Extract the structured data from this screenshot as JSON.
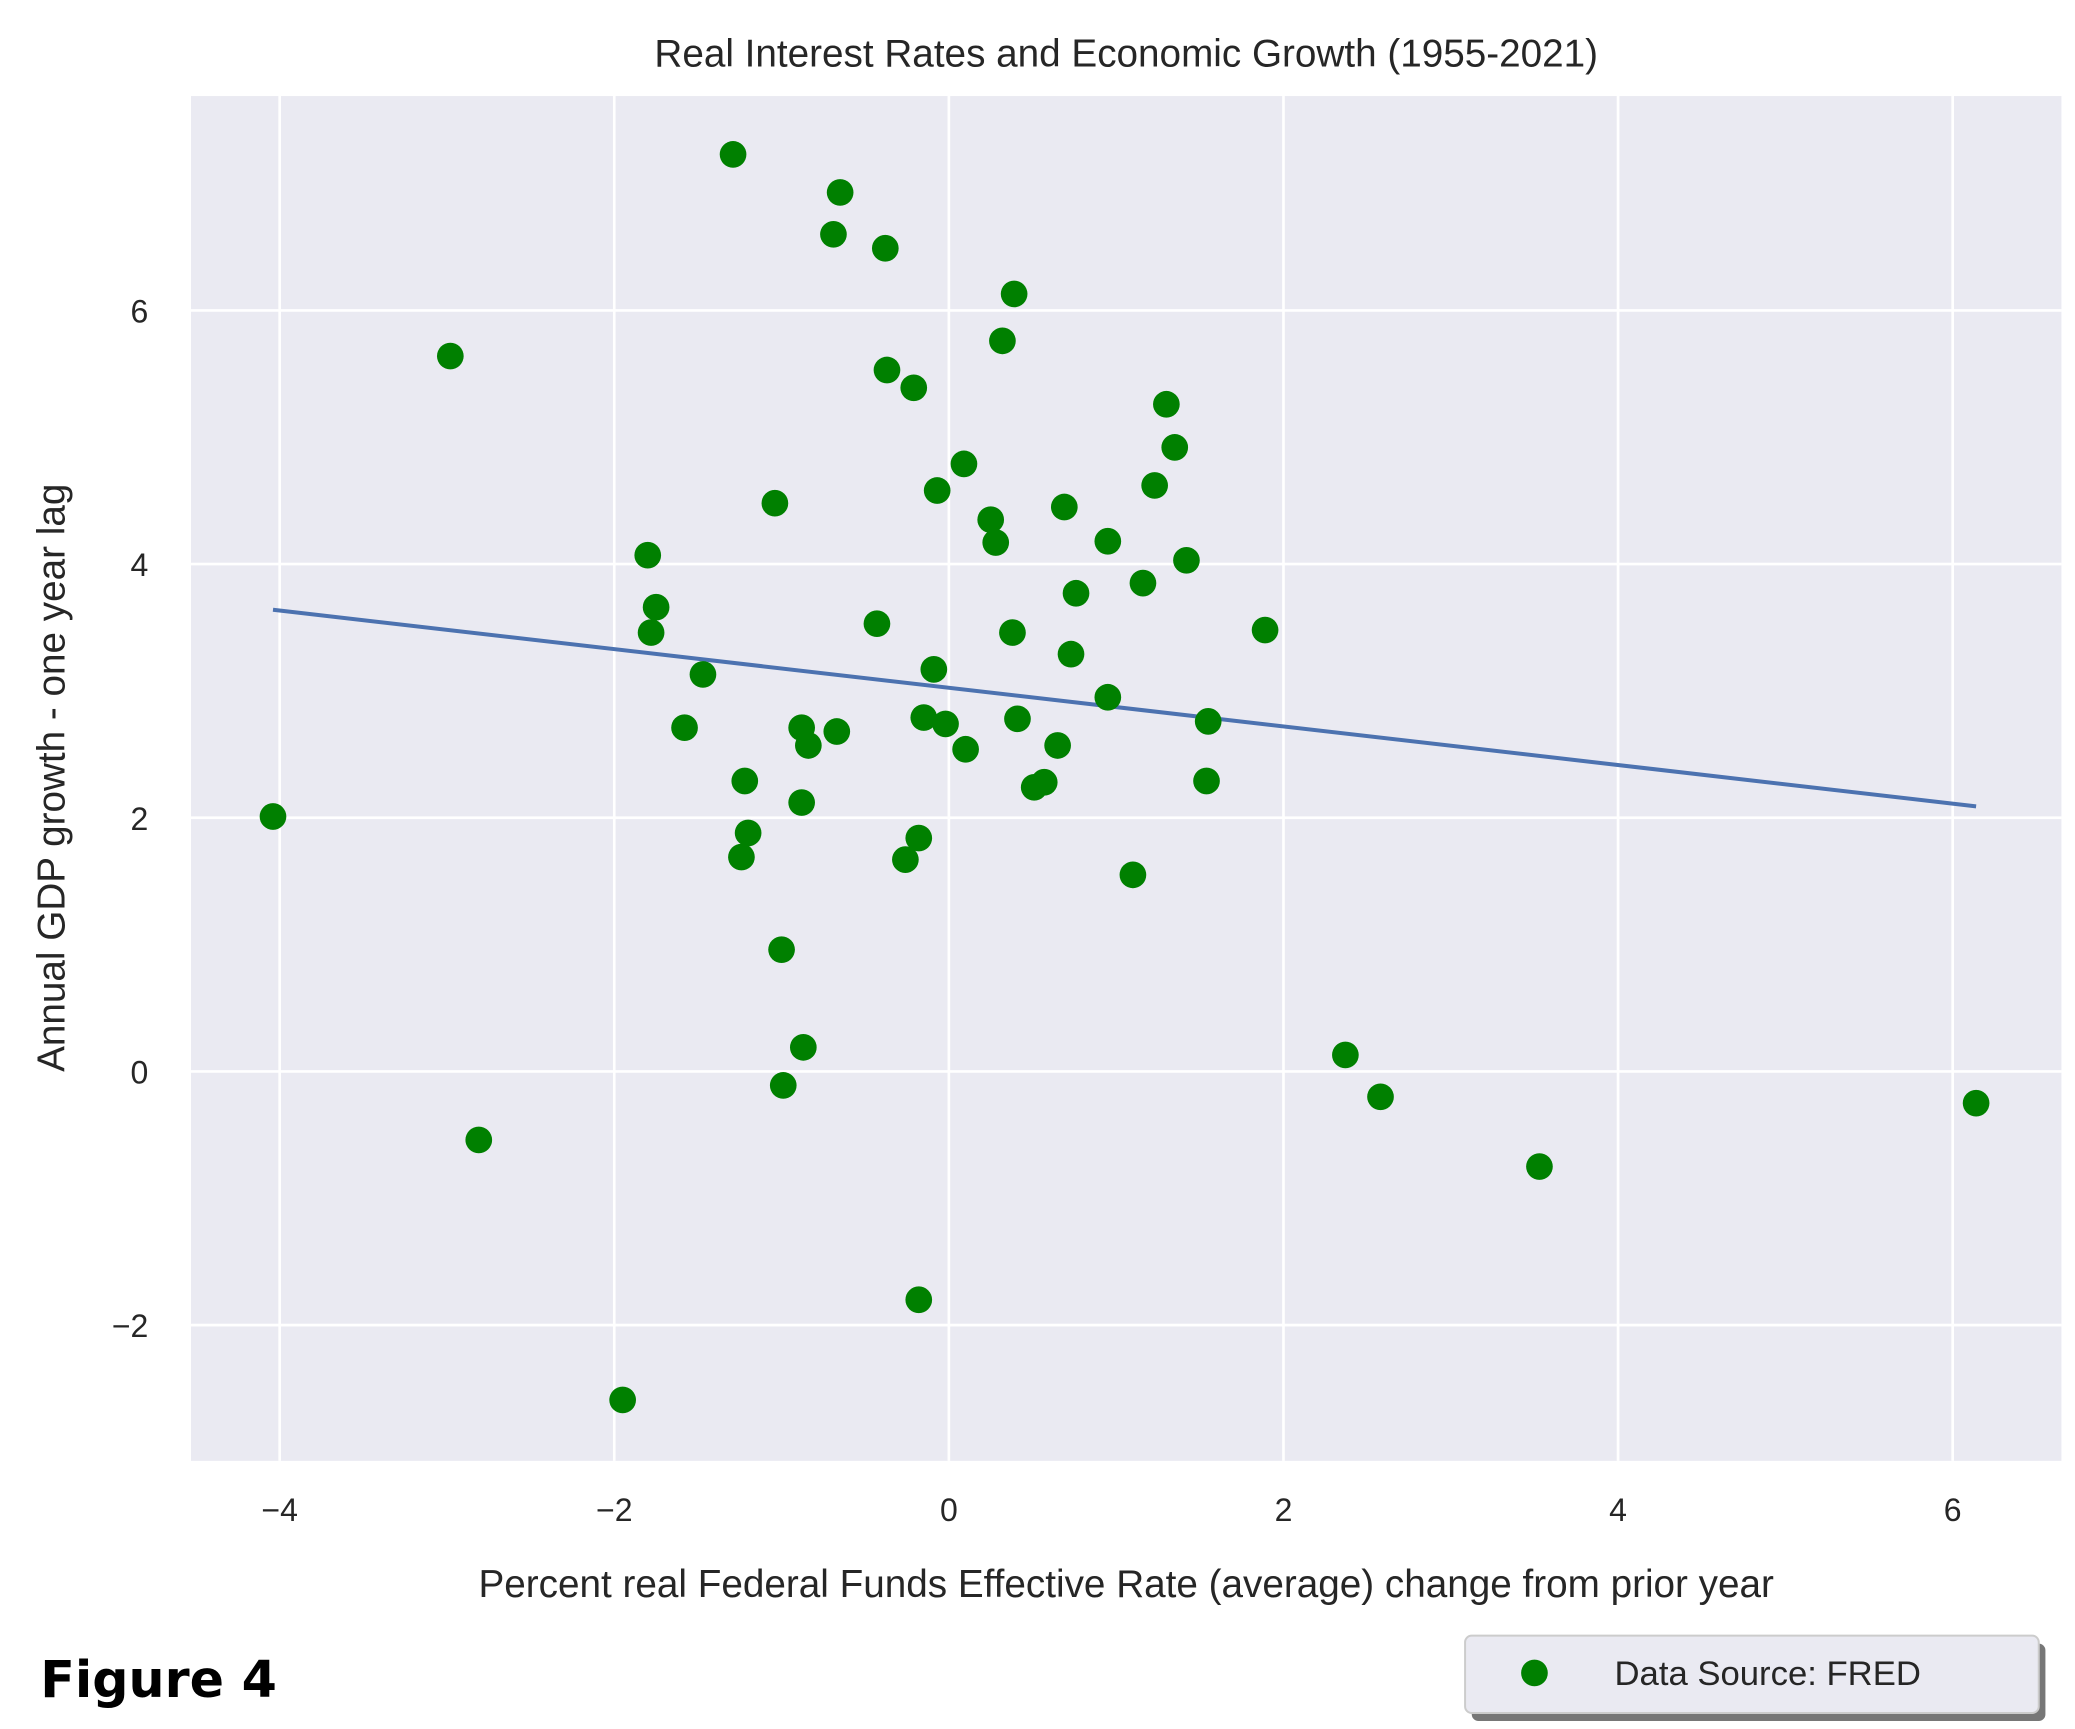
{
  "chart_data": {
    "type": "scatter",
    "title": "Real Interest Rates and Economic Growth (1955-2021)",
    "xlabel": "Percent real Federal Funds Effective Rate (average) change from prior year",
    "ylabel": "Annual GDP growth - one year lag",
    "xlim": [
      -4.53,
      6.65
    ],
    "ylim": [
      -3.07,
      7.69
    ],
    "xticks": [
      -4,
      -2,
      0,
      2,
      4,
      6
    ],
    "yticks": [
      -2,
      0,
      2,
      4,
      6
    ],
    "xtick_labels": [
      "−4",
      "−2",
      "0",
      "2",
      "4",
      "6"
    ],
    "ytick_labels": [
      "−2",
      "0",
      "2",
      "4",
      "6"
    ],
    "grid": true,
    "background": "#eaeaf2",
    "point_color": "#008000",
    "line_color": "#4c72b0",
    "legend": {
      "label": "Data Source: FRED",
      "placement": "bottom-right"
    },
    "figure_label": "Figure 4",
    "trendline": {
      "x": [
        -4.04,
        6.14
      ],
      "y": [
        3.64,
        2.09
      ]
    },
    "points": [
      [
        -1.29,
        7.23
      ],
      [
        -0.65,
        6.93
      ],
      [
        -0.69,
        6.6
      ],
      [
        -0.38,
        6.49
      ],
      [
        0.39,
        6.13
      ],
      [
        0.32,
        5.76
      ],
      [
        -2.98,
        5.64
      ],
      [
        -0.37,
        5.53
      ],
      [
        -0.21,
        5.39
      ],
      [
        1.3,
        5.26
      ],
      [
        1.35,
        4.92
      ],
      [
        0.09,
        4.79
      ],
      [
        1.23,
        4.62
      ],
      [
        -0.07,
        4.58
      ],
      [
        -1.04,
        4.48
      ],
      [
        0.69,
        4.45
      ],
      [
        0.25,
        4.35
      ],
      [
        0.28,
        4.17
      ],
      [
        0.95,
        4.18
      ],
      [
        -1.8,
        4.07
      ],
      [
        1.42,
        4.03
      ],
      [
        1.16,
        3.85
      ],
      [
        0.76,
        3.77
      ],
      [
        -1.75,
        3.66
      ],
      [
        -0.43,
        3.53
      ],
      [
        1.89,
        3.48
      ],
      [
        -1.78,
        3.46
      ],
      [
        0.38,
        3.46
      ],
      [
        0.73,
        3.29
      ],
      [
        -0.09,
        3.17
      ],
      [
        -1.47,
        3.13
      ],
      [
        0.95,
        2.95
      ],
      [
        -0.15,
        2.79
      ],
      [
        0.41,
        2.78
      ],
      [
        -0.02,
        2.74
      ],
      [
        1.55,
        2.76
      ],
      [
        -1.58,
        2.71
      ],
      [
        -0.88,
        2.71
      ],
      [
        -0.67,
        2.68
      ],
      [
        -0.84,
        2.57
      ],
      [
        0.65,
        2.57
      ],
      [
        0.1,
        2.54
      ],
      [
        -1.22,
        2.29
      ],
      [
        1.54,
        2.29
      ],
      [
        0.57,
        2.28
      ],
      [
        0.51,
        2.24
      ],
      [
        -4.04,
        2.01
      ],
      [
        -0.88,
        2.12
      ],
      [
        -1.2,
        1.88
      ],
      [
        -0.18,
        1.84
      ],
      [
        -1.24,
        1.69
      ],
      [
        -0.26,
        1.67
      ],
      [
        1.1,
        1.55
      ],
      [
        -1.0,
        0.96
      ],
      [
        -0.87,
        0.19
      ],
      [
        2.37,
        0.13
      ],
      [
        -0.99,
        -0.11
      ],
      [
        2.58,
        -0.2
      ],
      [
        6.14,
        -0.25
      ],
      [
        -2.81,
        -0.54
      ],
      [
        3.53,
        -0.75
      ],
      [
        -0.18,
        -1.8
      ],
      [
        -1.95,
        -2.59
      ]
    ]
  }
}
